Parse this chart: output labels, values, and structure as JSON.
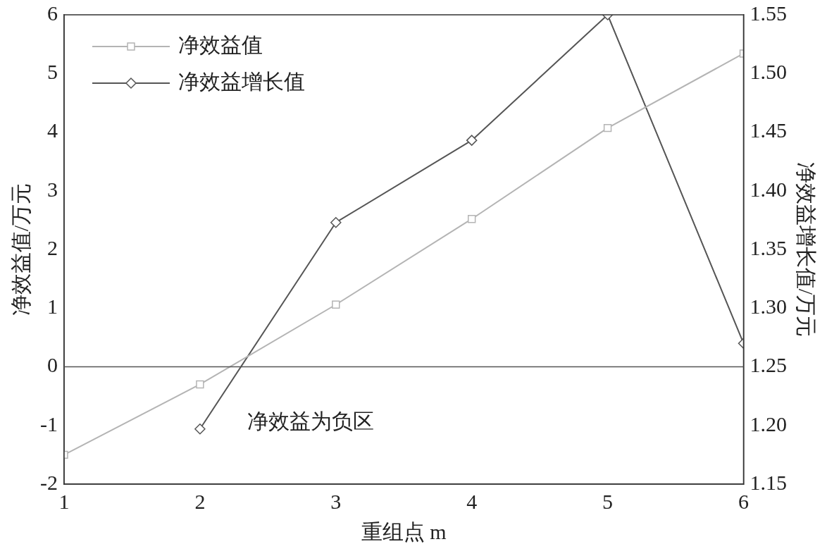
{
  "chart_data": {
    "type": "line",
    "xlabel": "重组点 m",
    "ylabel": "净效益值/万元",
    "y2label": "净效益增长值/万元",
    "x": [
      1,
      2,
      3,
      4,
      5,
      6
    ],
    "series": [
      {
        "name": "净效益值",
        "color": "#b4b4b4",
        "marker": "square",
        "values": [
          -1.5,
          -0.3,
          1.06,
          2.52,
          4.07,
          5.34
        ]
      },
      {
        "name": "净效益增长值",
        "color": "#555555",
        "marker": "diamond",
        "axis": "y2",
        "values": [
          null,
          1.197,
          1.373,
          1.443,
          1.55,
          1.27
        ]
      }
    ],
    "xlim": [
      1,
      6
    ],
    "xticks": [
      1,
      2,
      3,
      4,
      5,
      6
    ],
    "ylim": [
      -2,
      6
    ],
    "yticks": [
      -2,
      -1,
      0,
      1,
      2,
      3,
      4,
      5,
      6
    ],
    "y2lim": [
      1.15,
      1.55
    ],
    "y2ticks": [
      1.15,
      {
        "value": 1.2,
        "label": "1.20"
      },
      1.25,
      {
        "value": 1.3,
        "label": "1.30"
      },
      1.35,
      {
        "value": 1.4,
        "label": "1.40"
      },
      1.45,
      {
        "value": 1.5,
        "label": "1.50"
      },
      1.55
    ],
    "ref_lines": [
      {
        "axis": "y",
        "value": 0,
        "color": "#555555"
      }
    ],
    "annotations": [
      "净效益为负区"
    ],
    "legend": "top left",
    "grid": false,
    "line_style": "solid"
  }
}
